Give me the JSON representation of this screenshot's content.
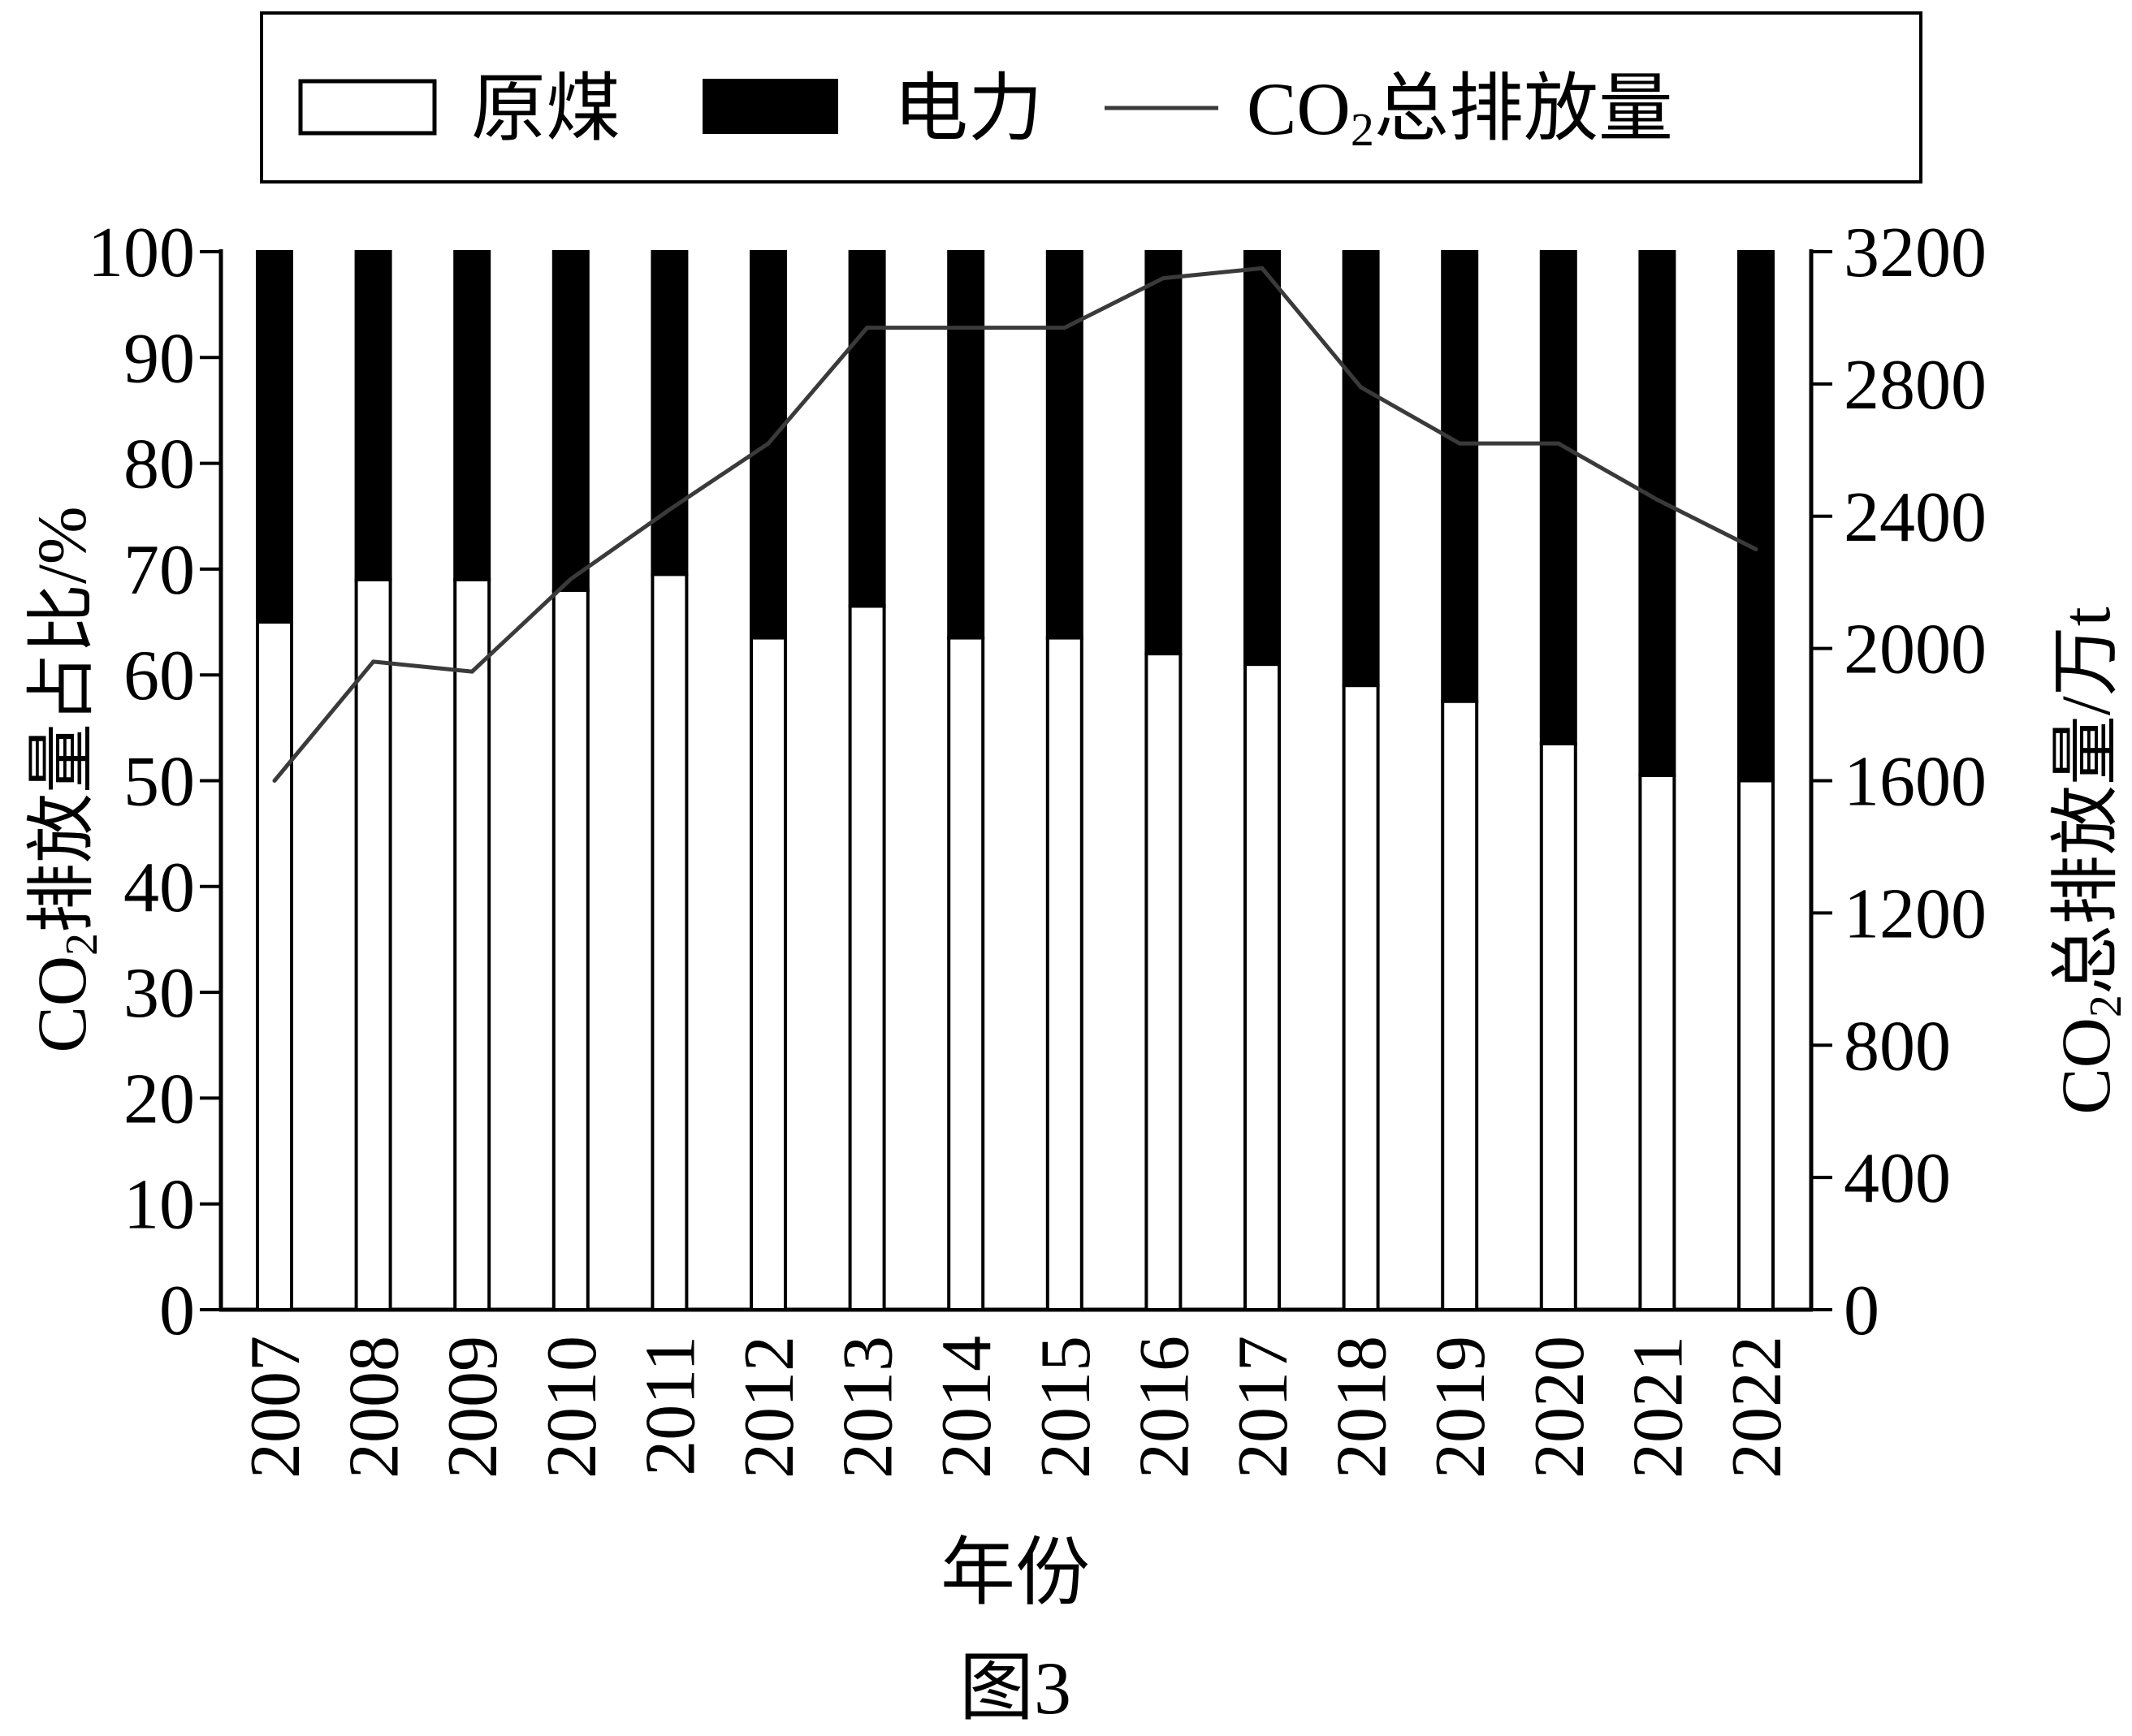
{
  "chart_data": {
    "type": "bar",
    "categories": [
      "2007",
      "2008",
      "2009",
      "2010",
      "2011",
      "2012",
      "2013",
      "2014",
      "2015",
      "2016",
      "2017",
      "2018",
      "2019",
      "2020",
      "2021",
      "2022"
    ],
    "series": [
      {
        "name": "原煤",
        "type": "bar",
        "axis": "left",
        "values": [
          65,
          69,
          69,
          68,
          69.5,
          63.5,
          66.5,
          63.5,
          63.5,
          62,
          61,
          59,
          57.5,
          53.5,
          50.5,
          50
        ]
      },
      {
        "name": "电力",
        "type": "bar",
        "axis": "left",
        "values": [
          35,
          31,
          31,
          32,
          30.5,
          36.5,
          33.5,
          36.5,
          36.5,
          38,
          39,
          41,
          42.5,
          46.5,
          49.5,
          50
        ]
      },
      {
        "name": "CO₂总排放量",
        "type": "line",
        "axis": "right",
        "values": [
          1600,
          1960,
          1930,
          2210,
          2420,
          2620,
          2970,
          2970,
          2970,
          3120,
          3150,
          2790,
          2620,
          2620,
          2450,
          2300
        ]
      }
    ],
    "stacked": true,
    "xlabel": "年份",
    "ylabel_left": {
      "main": "CO",
      "sub": "2",
      "rest": "排放量占比/%"
    },
    "ylabel_right": {
      "main": "CO",
      "sub": "2",
      "rest": "总排放量/万t"
    },
    "ylim_left": [
      0,
      100
    ],
    "ylim_right": [
      0,
      3200
    ],
    "yticks_left": [
      "0",
      "10",
      "20",
      "30",
      "40",
      "50",
      "60",
      "70",
      "80",
      "90",
      "100"
    ],
    "yticks_right": [
      "0",
      "400",
      "800",
      "1200",
      "1600",
      "2000",
      "2400",
      "2800",
      "3200"
    ],
    "legend": {
      "position": "top",
      "items": [
        {
          "label": "原煤",
          "swatch": "white-bar"
        },
        {
          "label": "电力",
          "swatch": "black-bar"
        },
        {
          "label_main": "CO",
          "label_sub": "2",
          "label_rest": "总排放量",
          "swatch": "line"
        }
      ]
    },
    "caption": "图3",
    "grid": false,
    "colors": {
      "coal": "#ffffff",
      "power": "#000000",
      "line": "#3a3a3a",
      "axis": "#000000"
    }
  }
}
